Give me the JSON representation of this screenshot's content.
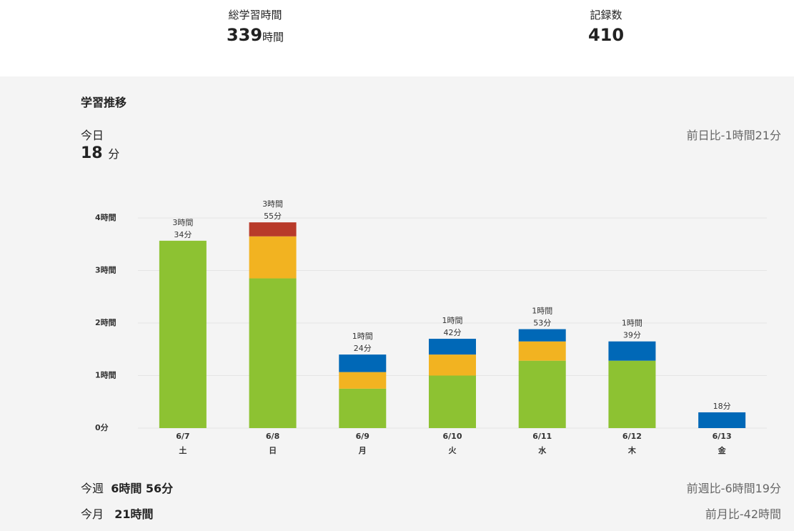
{
  "stats": [
    {
      "label": "総学習時間",
      "value": "339",
      "unit": "時間"
    },
    {
      "label": "記録数",
      "value": "410"
    }
  ],
  "section_title": "学習推移",
  "today": {
    "label": "今日",
    "value": "18",
    "unit": "分",
    "compare": "前日比-1時間21分"
  },
  "chart_data": {
    "type": "stacked_bar",
    "categories": [
      "6/7",
      "6/8",
      "6/9",
      "6/10",
      "6/11",
      "6/12",
      "6/13"
    ],
    "weekdays": [
      "土",
      "日",
      "月",
      "火",
      "水",
      "木",
      "金"
    ],
    "series": [
      {
        "color": "#8dc232",
        "values": [
          214,
          171,
          45,
          60,
          77,
          77,
          null
        ]
      },
      {
        "color": "#f2b321",
        "values": [
          null,
          48,
          19,
          24,
          22,
          null,
          null
        ]
      },
      {
        "color": "#b83a2a",
        "values": [
          null,
          16,
          null,
          null,
          null,
          null,
          null
        ]
      },
      {
        "color": "#0068b7",
        "values": [
          null,
          null,
          20,
          18,
          14,
          22,
          18
        ]
      }
    ],
    "bar_labels": [
      [
        "3時間",
        "34分"
      ],
      [
        "3時間",
        "55分"
      ],
      [
        "1時間",
        "24分"
      ],
      [
        "1時間",
        "42分"
      ],
      [
        "1時間",
        "53分"
      ],
      [
        "1時間",
        "39分"
      ],
      [
        "18分"
      ]
    ],
    "ylim": [
      0,
      240
    ],
    "yticks": [
      {
        "value": 0,
        "label": "0分"
      },
      {
        "value": 60,
        "label": "1時間"
      },
      {
        "value": 120,
        "label": "2時間"
      },
      {
        "value": 180,
        "label": "3時間"
      },
      {
        "value": 240,
        "label": "4時間"
      }
    ],
    "grid": true
  },
  "summary": [
    {
      "label": "今週",
      "value": "6時間 56分",
      "compare": "前週比-6時間19分"
    },
    {
      "label": "今月",
      "value": "21時間",
      "compare": "前月比-42時間"
    }
  ]
}
